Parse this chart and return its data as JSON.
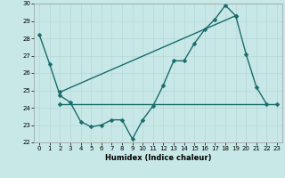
{
  "title": "",
  "xlabel": "Humidex (Indice chaleur)",
  "bg_color": "#c8e8e8",
  "line_color": "#1a6b6b",
  "grid_color": "#b8d8d8",
  "x": [
    0,
    1,
    2,
    3,
    4,
    5,
    6,
    7,
    8,
    9,
    10,
    11,
    12,
    13,
    14,
    15,
    16,
    17,
    18,
    19,
    20,
    21,
    22,
    23
  ],
  "line1_y": [
    28.2,
    26.5,
    24.7,
    24.3,
    23.2,
    22.9,
    23.0,
    23.3,
    23.3,
    22.2,
    23.3,
    24.1,
    25.3,
    26.7,
    26.7,
    27.7,
    28.5,
    29.1,
    29.9,
    29.3,
    27.1,
    25.2,
    24.2,
    null
  ],
  "line2_x": [
    2,
    19
  ],
  "line2_y": [
    24.9,
    29.3
  ],
  "line3_x": [
    2,
    23
  ],
  "line3_y": [
    24.2,
    24.2
  ],
  "ylim": [
    22,
    30
  ],
  "xlim": [
    -0.5,
    23.5
  ],
  "yticks": [
    22,
    23,
    24,
    25,
    26,
    27,
    28,
    29,
    30
  ],
  "xticks": [
    0,
    1,
    2,
    3,
    4,
    5,
    6,
    7,
    8,
    9,
    10,
    11,
    12,
    13,
    14,
    15,
    16,
    17,
    18,
    19,
    20,
    21,
    22,
    23
  ],
  "xlabel_fontsize": 6,
  "tick_fontsize": 5,
  "markersize": 2.5,
  "linewidth": 1.0
}
